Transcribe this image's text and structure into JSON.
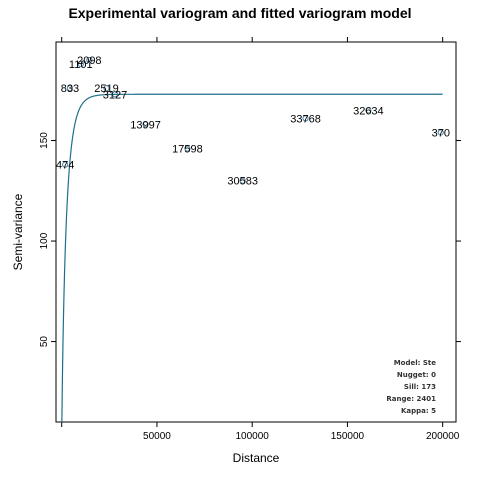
{
  "chart_data": {
    "type": "scatter",
    "title": "Experimental variogram and fitted variogram model",
    "xlabel": "Distance",
    "ylabel": "Semi-variance",
    "xlim": [
      -3000,
      207000
    ],
    "ylim": [
      10,
      199
    ],
    "x_ticks": [
      50000,
      100000,
      150000,
      200000
    ],
    "y_ticks": [
      50,
      100,
      150
    ],
    "grid": false,
    "points": [
      {
        "x": 1800,
        "y": 138,
        "label": "474"
      },
      {
        "x": 4300,
        "y": 176,
        "label": "833"
      },
      {
        "x": 10000,
        "y": 188,
        "label": "1101"
      },
      {
        "x": 14500,
        "y": 190,
        "label": "2098"
      },
      {
        "x": 23500,
        "y": 176,
        "label": "2519"
      },
      {
        "x": 28000,
        "y": 173,
        "label": "3127"
      },
      {
        "x": 44000,
        "y": 158,
        "label": "13997"
      },
      {
        "x": 66000,
        "y": 146,
        "label": "17598"
      },
      {
        "x": 95000,
        "y": 130,
        "label": "30583"
      },
      {
        "x": 128000,
        "y": 161,
        "label": "33768"
      },
      {
        "x": 161000,
        "y": 165,
        "label": "32634"
      },
      {
        "x": 199000,
        "y": 154,
        "label": "370"
      }
    ],
    "model_line": {
      "model": "Ste",
      "nugget": 0,
      "sill": 173,
      "range": 2401,
      "kappa": 5,
      "x_max": 200000,
      "color": "#1f6f8b"
    },
    "model_info": [
      "Model: Ste",
      "Nugget: 0",
      "Sill: 173",
      "Range: 2401",
      "Kappa: 5"
    ],
    "point_color": "#4a7fa0",
    "legend": "bottom-right"
  }
}
